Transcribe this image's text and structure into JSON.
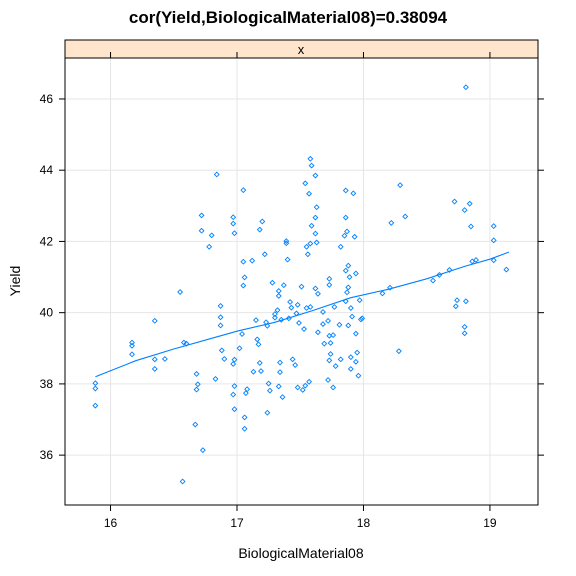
{
  "chart_data": {
    "type": "scatter",
    "title": "cor(Yield,BiologicalMaterial08)=0.38094",
    "strip_label": "x",
    "xlabel": "BiologicalMaterial08",
    "ylabel": "Yield",
    "xlim": [
      15.64,
      19.38
    ],
    "ylim": [
      34.6,
      47.15
    ],
    "x_ticks": [
      16,
      17,
      18,
      19
    ],
    "y_ticks": [
      36,
      38,
      40,
      42,
      44,
      46
    ],
    "x_tick_labels": [
      "16",
      "17",
      "18",
      "19"
    ],
    "y_tick_labels": [
      "36",
      "38",
      "40",
      "42",
      "44",
      "46"
    ],
    "grid": true,
    "colors": {
      "points": "#0080ff",
      "strip_bg": "#ffe5cc",
      "grid": "#e6e6e6"
    },
    "series": [
      {
        "name": "x",
        "points": [
          [
            15.88,
            37.39
          ],
          [
            15.88,
            37.87
          ],
          [
            15.88,
            38.02
          ],
          [
            16.17,
            38.83
          ],
          [
            16.17,
            39.07
          ],
          [
            16.17,
            39.16
          ],
          [
            16.35,
            38.42
          ],
          [
            16.35,
            38.69
          ],
          [
            16.35,
            39.77
          ],
          [
            16.43,
            38.7
          ],
          [
            16.55,
            40.58
          ],
          [
            16.58,
            39.16
          ],
          [
            16.6,
            39.13
          ],
          [
            16.57,
            35.26
          ],
          [
            16.67,
            36.86
          ],
          [
            16.68,
            37.84
          ],
          [
            16.69,
            37.99
          ],
          [
            16.68,
            38.28
          ],
          [
            16.72,
            42.73
          ],
          [
            16.72,
            42.3
          ],
          [
            16.73,
            36.14
          ],
          [
            16.78,
            41.85
          ],
          [
            16.8,
            42.17
          ],
          [
            16.83,
            38.14
          ],
          [
            16.84,
            43.88
          ],
          [
            16.87,
            40.19
          ],
          [
            16.87,
            39.87
          ],
          [
            16.87,
            39.64
          ],
          [
            16.88,
            38.94
          ],
          [
            16.9,
            38.7
          ],
          [
            16.97,
            42.68
          ],
          [
            16.97,
            42.5
          ],
          [
            16.98,
            42.23
          ],
          [
            16.97,
            38.56
          ],
          [
            16.98,
            37.94
          ],
          [
            16.97,
            37.7
          ],
          [
            16.98,
            37.29
          ],
          [
            16.98,
            38.68
          ],
          [
            17.02,
            39.0
          ],
          [
            17.04,
            39.4
          ],
          [
            17.05,
            43.44
          ],
          [
            17.05,
            41.43
          ],
          [
            17.06,
            40.99
          ],
          [
            17.05,
            40.76
          ],
          [
            17.06,
            37.06
          ],
          [
            17.06,
            36.74
          ],
          [
            17.07,
            37.74
          ],
          [
            17.08,
            37.85
          ],
          [
            17.12,
            41.46
          ],
          [
            17.13,
            38.34
          ],
          [
            17.15,
            39.79
          ],
          [
            17.16,
            39.25
          ],
          [
            17.17,
            39.11
          ],
          [
            17.18,
            38.59
          ],
          [
            17.19,
            38.36
          ],
          [
            17.18,
            42.33
          ],
          [
            17.2,
            42.56
          ],
          [
            17.22,
            41.64
          ],
          [
            17.23,
            39.73
          ],
          [
            17.24,
            39.63
          ],
          [
            17.24,
            37.19
          ],
          [
            17.25,
            38.01
          ],
          [
            17.26,
            37.81
          ],
          [
            17.28,
            40.84
          ],
          [
            17.3,
            39.96
          ],
          [
            17.3,
            39.86
          ],
          [
            17.33,
            40.47
          ],
          [
            17.33,
            40.61
          ],
          [
            17.32,
            40.07
          ],
          [
            17.34,
            38.6
          ],
          [
            17.34,
            38.33
          ],
          [
            17.33,
            37.93
          ],
          [
            17.35,
            39.8
          ],
          [
            17.37,
            40.77
          ],
          [
            17.36,
            37.63
          ],
          [
            17.39,
            41.95
          ],
          [
            17.39,
            42.01
          ],
          [
            17.4,
            41.49
          ],
          [
            17.41,
            39.84
          ],
          [
            17.43,
            40.14
          ],
          [
            17.42,
            40.3
          ],
          [
            17.44,
            38.69
          ],
          [
            17.46,
            38.53
          ],
          [
            17.48,
            40.22
          ],
          [
            17.47,
            39.98
          ],
          [
            17.49,
            39.71
          ],
          [
            17.48,
            37.9
          ],
          [
            17.51,
            40.73
          ],
          [
            17.53,
            39.54
          ],
          [
            17.52,
            37.83
          ],
          [
            17.54,
            43.63
          ],
          [
            17.55,
            41.85
          ],
          [
            17.56,
            41.64
          ],
          [
            17.55,
            40.13
          ],
          [
            17.54,
            37.95
          ],
          [
            17.58,
            44.32
          ],
          [
            17.59,
            44.13
          ],
          [
            17.57,
            43.34
          ],
          [
            17.59,
            42.44
          ],
          [
            17.58,
            41.94
          ],
          [
            17.58,
            40.16
          ],
          [
            17.57,
            38.06
          ],
          [
            17.62,
            43.85
          ],
          [
            17.63,
            42.96
          ],
          [
            17.62,
            42.67
          ],
          [
            17.62,
            42.22
          ],
          [
            17.63,
            41.97
          ],
          [
            17.62,
            40.68
          ],
          [
            17.64,
            40.53
          ],
          [
            17.64,
            39.45
          ],
          [
            17.68,
            39.68
          ],
          [
            17.68,
            40.02
          ],
          [
            17.69,
            39.13
          ],
          [
            17.73,
            40.95
          ],
          [
            17.73,
            40.78
          ],
          [
            17.72,
            39.77
          ],
          [
            17.73,
            39.35
          ],
          [
            17.74,
            39.15
          ],
          [
            17.74,
            38.84
          ],
          [
            17.72,
            38.11
          ],
          [
            17.73,
            38.66
          ],
          [
            17.77,
            40.16
          ],
          [
            17.76,
            39.37
          ],
          [
            17.76,
            37.9
          ],
          [
            17.78,
            38.5
          ],
          [
            17.82,
            41.85
          ],
          [
            17.81,
            39.66
          ],
          [
            17.82,
            38.69
          ],
          [
            17.86,
            43.43
          ],
          [
            17.86,
            42.67
          ],
          [
            17.87,
            42.28
          ],
          [
            17.85,
            42.16
          ],
          [
            17.86,
            41.18
          ],
          [
            17.87,
            40.57
          ],
          [
            17.86,
            40.32
          ],
          [
            17.88,
            39.64
          ],
          [
            17.88,
            40.71
          ],
          [
            17.88,
            41.32
          ],
          [
            17.89,
            41.0
          ],
          [
            17.9,
            40.13
          ],
          [
            17.91,
            39.89
          ],
          [
            17.9,
            38.75
          ],
          [
            17.9,
            38.42
          ],
          [
            17.92,
            43.35
          ],
          [
            17.93,
            42.13
          ],
          [
            17.94,
            41.1
          ],
          [
            17.94,
            39.41
          ],
          [
            17.95,
            38.88
          ],
          [
            17.94,
            38.62
          ],
          [
            17.96,
            38.23
          ],
          [
            17.97,
            40.35
          ],
          [
            17.98,
            39.81
          ],
          [
            17.99,
            39.84
          ],
          [
            18.15,
            40.54
          ],
          [
            18.21,
            40.7
          ],
          [
            18.22,
            42.52
          ],
          [
            18.28,
            38.92
          ],
          [
            18.29,
            43.58
          ],
          [
            18.33,
            42.7
          ],
          [
            18.55,
            40.9
          ],
          [
            18.6,
            41.06
          ],
          [
            18.68,
            41.2
          ],
          [
            18.72,
            43.12
          ],
          [
            18.73,
            40.18
          ],
          [
            18.74,
            40.35
          ],
          [
            18.81,
            46.33
          ],
          [
            18.8,
            42.88
          ],
          [
            18.8,
            39.6
          ],
          [
            18.8,
            39.42
          ],
          [
            18.81,
            40.32
          ],
          [
            18.84,
            43.06
          ],
          [
            18.85,
            42.42
          ],
          [
            18.86,
            41.44
          ],
          [
            18.89,
            41.48
          ],
          [
            19.03,
            42.43
          ],
          [
            19.03,
            42.03
          ],
          [
            19.03,
            41.47
          ],
          [
            19.13,
            41.21
          ]
        ]
      }
    ],
    "smooth_line": [
      [
        15.88,
        38.2
      ],
      [
        16.2,
        38.65
      ],
      [
        16.5,
        38.98
      ],
      [
        16.8,
        39.28
      ],
      [
        17.0,
        39.48
      ],
      [
        17.3,
        39.73
      ],
      [
        17.6,
        40.06
      ],
      [
        17.9,
        40.42
      ],
      [
        18.2,
        40.66
      ],
      [
        18.5,
        40.95
      ],
      [
        18.8,
        41.3
      ],
      [
        19.0,
        41.5
      ],
      [
        19.15,
        41.7
      ]
    ]
  }
}
